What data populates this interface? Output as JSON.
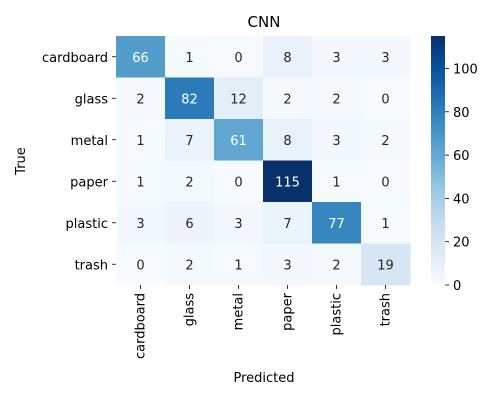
{
  "chart_data": {
    "type": "heatmap",
    "title": "CNN",
    "xlabel": "Predicted",
    "ylabel": "True",
    "x_categories": [
      "cardboard",
      "glass",
      "metal",
      "paper",
      "plastic",
      "trash"
    ],
    "y_categories": [
      "cardboard",
      "glass",
      "metal",
      "paper",
      "plastic",
      "trash"
    ],
    "values": [
      [
        66,
        1,
        0,
        8,
        3,
        3
      ],
      [
        2,
        82,
        12,
        2,
        2,
        0
      ],
      [
        1,
        7,
        61,
        8,
        3,
        2
      ],
      [
        1,
        2,
        0,
        115,
        1,
        0
      ],
      [
        3,
        6,
        3,
        7,
        77,
        1
      ],
      [
        0,
        2,
        1,
        3,
        2,
        19
      ]
    ],
    "colorbar": {
      "colormap": "Blues",
      "min": 0,
      "max": 115,
      "ticks": [
        0,
        20,
        40,
        60,
        80,
        100
      ]
    }
  }
}
